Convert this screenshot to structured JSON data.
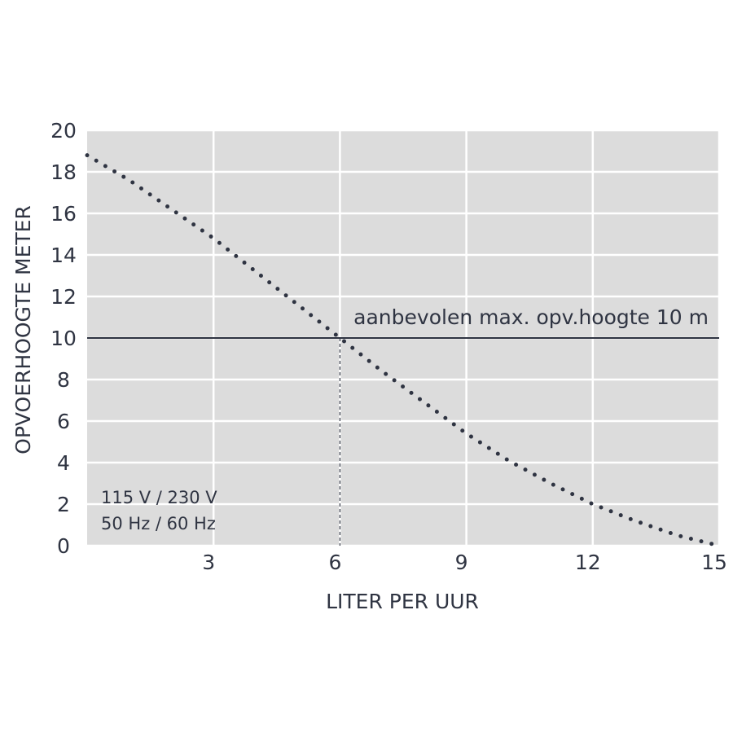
{
  "chart_data": {
    "type": "line",
    "x_label": "LITER PER UUR",
    "y_label": "OPVOERHOOGTE METER",
    "x": [
      0,
      1,
      2,
      3,
      4,
      5,
      6,
      7,
      8,
      9,
      10,
      11,
      12,
      13,
      14,
      15
    ],
    "series": [
      {
        "color": "#2f3442",
        "values": [
          18.8,
          17.6,
          16.2,
          14.8,
          13.2,
          11.6,
          10.0,
          8.4,
          6.9,
          5.4,
          4.1,
          3.0,
          2.0,
          1.2,
          0.5,
          0
        ]
      }
    ],
    "xlim": [
      0,
      15
    ],
    "xticks": [
      3,
      6,
      9,
      12,
      15
    ],
    "ylim": [
      0,
      20
    ],
    "yticks": [
      0,
      2,
      4,
      6,
      8,
      10,
      12,
      14,
      16,
      18,
      20
    ],
    "grid": true,
    "reference": {
      "y": 10,
      "x": 6,
      "label": "aanbevolen max. opv.hoogte 10 m",
      "color": "#2f3442"
    },
    "annotations": [
      "115 V / 230 V",
      "50 Hz / 60 Hz"
    ]
  }
}
